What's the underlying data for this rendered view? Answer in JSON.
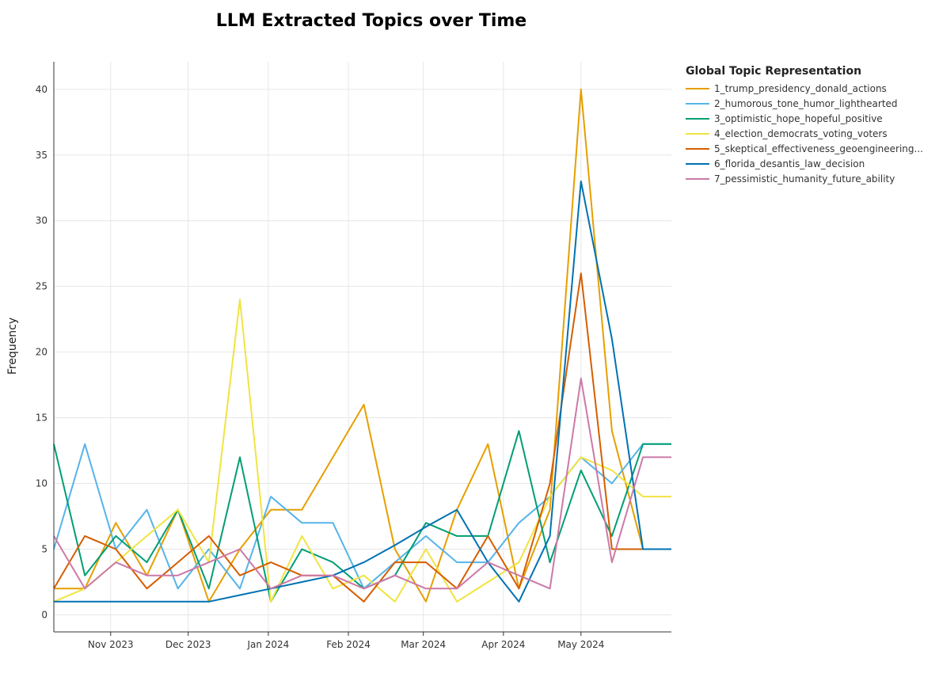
{
  "chart_data": {
    "type": "line",
    "title": "LLM Extracted Topics over Time",
    "xlabel": "",
    "ylabel": "Frequency",
    "x": [
      "2023-10-10",
      "2023-10-22",
      "2023-11-03",
      "2023-11-15",
      "2023-11-27",
      "2023-12-09",
      "2023-12-21",
      "2024-01-02",
      "2024-01-14",
      "2024-01-26",
      "2024-02-07",
      "2024-02-19",
      "2024-03-02",
      "2024-03-14",
      "2024-03-26",
      "2024-04-07",
      "2024-04-19",
      "2024-05-01",
      "2024-05-13",
      "2024-05-25",
      "2024-06-05"
    ],
    "x_tick_labels": [
      "Nov 2023",
      "Dec 2023",
      "Jan 2024",
      "Feb 2024",
      "Mar 2024",
      "Apr 2024",
      "May 2024"
    ],
    "x_tick_dates": [
      "2023-11-01",
      "2023-12-01",
      "2024-01-01",
      "2024-02-01",
      "2024-03-01",
      "2024-04-01",
      "2024-05-01"
    ],
    "xlim": [
      "2023-10-10",
      "2024-06-05"
    ],
    "y_ticks": [
      0,
      5,
      10,
      15,
      20,
      25,
      30,
      35,
      40
    ],
    "ylim": [
      -1.3,
      42.1
    ],
    "grid": true,
    "legend_title": "Global Topic Representation",
    "legend_position": "right",
    "series": [
      {
        "name": "1_trump_presidency_donald_actions",
        "display_name": "1_trump_presidency_donald_actions",
        "color": "#E69F00",
        "values": [
          2,
          2,
          7,
          3,
          8,
          1,
          5,
          8,
          8,
          12,
          16,
          5,
          1,
          8,
          13,
          2,
          8,
          40,
          14,
          5,
          5
        ]
      },
      {
        "name": "2_humorous_tone_humor_lighthearted",
        "display_name": "2_humorous_tone_humor_lighthearted",
        "color": "#56B4E9",
        "values": [
          5,
          13,
          5,
          8,
          2,
          5,
          2,
          9,
          7,
          7,
          2,
          4,
          6,
          4,
          4,
          7,
          9,
          12,
          10,
          13,
          13
        ]
      },
      {
        "name": "3_optimistic_hope_hopeful_positive",
        "display_name": "3_optimistic_hope_hopeful_positive",
        "color": "#009E73",
        "values": [
          13,
          3,
          6,
          4,
          8,
          2,
          12,
          1,
          5,
          4,
          2,
          3,
          7,
          6,
          6,
          14,
          4,
          11,
          6,
          13,
          13
        ]
      },
      {
        "name": "4_election_democrats_voting_voters",
        "display_name": "4_election_democrats_voting_voters",
        "color": "#F0E442",
        "values": [
          1,
          2,
          4,
          6,
          8,
          4,
          24,
          1,
          6,
          2,
          3,
          1,
          5,
          1,
          2.5,
          4,
          9,
          12,
          11,
          9,
          9
        ]
      },
      {
        "name": "5_skeptical_effectiveness_geoengineering_reflect",
        "display_name": "5_skeptical_effectiveness_geoengineering...",
        "color": "#D55E00",
        "values": [
          2,
          6,
          5,
          2,
          4,
          6,
          3,
          4,
          3,
          3,
          1,
          4,
          4,
          2,
          6,
          2,
          10,
          26,
          5,
          5,
          5
        ]
      },
      {
        "name": "6_florida_desantis_law_decision",
        "display_name": "6_florida_desantis_law_decision",
        "color": "#0072B2",
        "values": [
          1,
          1,
          1,
          1,
          1,
          1,
          1.5,
          2,
          2.5,
          3,
          4,
          5.3,
          6.7,
          8,
          4,
          1,
          6,
          33,
          21,
          5,
          5
        ]
      },
      {
        "name": "7_pessimistic_humanity_future_ability",
        "display_name": "7_pessimistic_humanity_future_ability",
        "color": "#CC79A7",
        "values": [
          6,
          2,
          4,
          3,
          3,
          4,
          5,
          2,
          3,
          3,
          2,
          3,
          2,
          2,
          4,
          3,
          2,
          18,
          4,
          12,
          12
        ]
      }
    ]
  }
}
